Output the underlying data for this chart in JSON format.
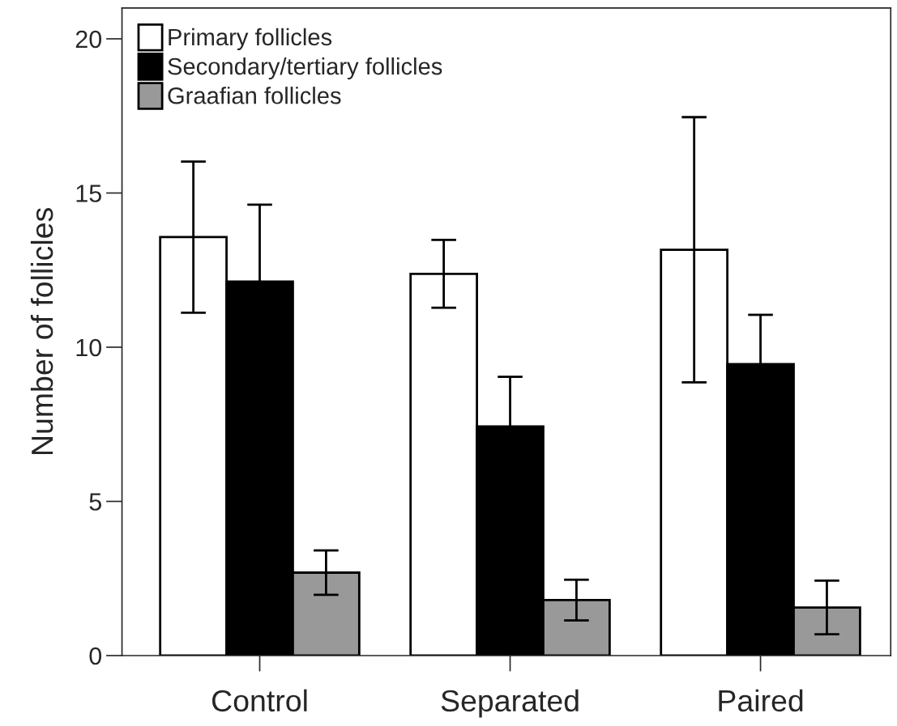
{
  "chart_data": {
    "type": "bar",
    "ylabel": "Number of follicles",
    "categories": [
      "Control",
      "Separated",
      "Paired"
    ],
    "series": [
      {
        "name": "Primary follicles",
        "color": "#ffffff",
        "values": [
          13.57,
          12.38,
          13.16
        ],
        "errors": [
          2.45,
          1.1,
          4.3
        ]
      },
      {
        "name": "Secondary/tertiary follicles",
        "color": "#000000",
        "values": [
          12.13,
          7.43,
          9.45
        ],
        "errors": [
          2.49,
          1.61,
          1.6
        ]
      },
      {
        "name": "Graafian follicles",
        "color": "#999999",
        "values": [
          2.69,
          1.8,
          1.56
        ],
        "errors": [
          0.72,
          0.66,
          0.87
        ]
      }
    ],
    "ylim": [
      0,
      21
    ],
    "yticks": [
      0,
      5,
      10,
      15,
      20
    ],
    "grid": false,
    "legend": "top left"
  }
}
